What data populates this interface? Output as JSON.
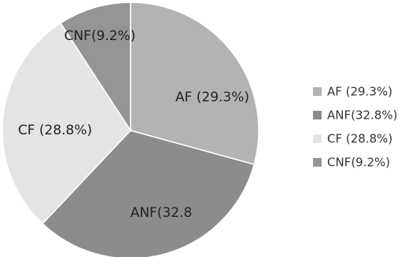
{
  "chart_data": {
    "type": "pie",
    "title": "",
    "legend_position": "right",
    "slices": [
      {
        "name": "AF",
        "value": 29.3,
        "label": "AF (29.3%)",
        "legend": "AF   (29.3%)",
        "color": "#b3b3b3"
      },
      {
        "name": "ANF",
        "value": 32.8,
        "label": "ANF(32.8",
        "legend": "ANF(32.8%)",
        "color": "#8c8c8c"
      },
      {
        "name": "CF",
        "value": 28.8,
        "label": "CF  (28.8%)",
        "legend": "CF   (28.8%)",
        "color": "#e4e4e4"
      },
      {
        "name": "CNF",
        "value": 9.2,
        "label": "CNF(9.2%)",
        "legend": "CNF(9.2%)",
        "color": "#959595"
      }
    ]
  }
}
